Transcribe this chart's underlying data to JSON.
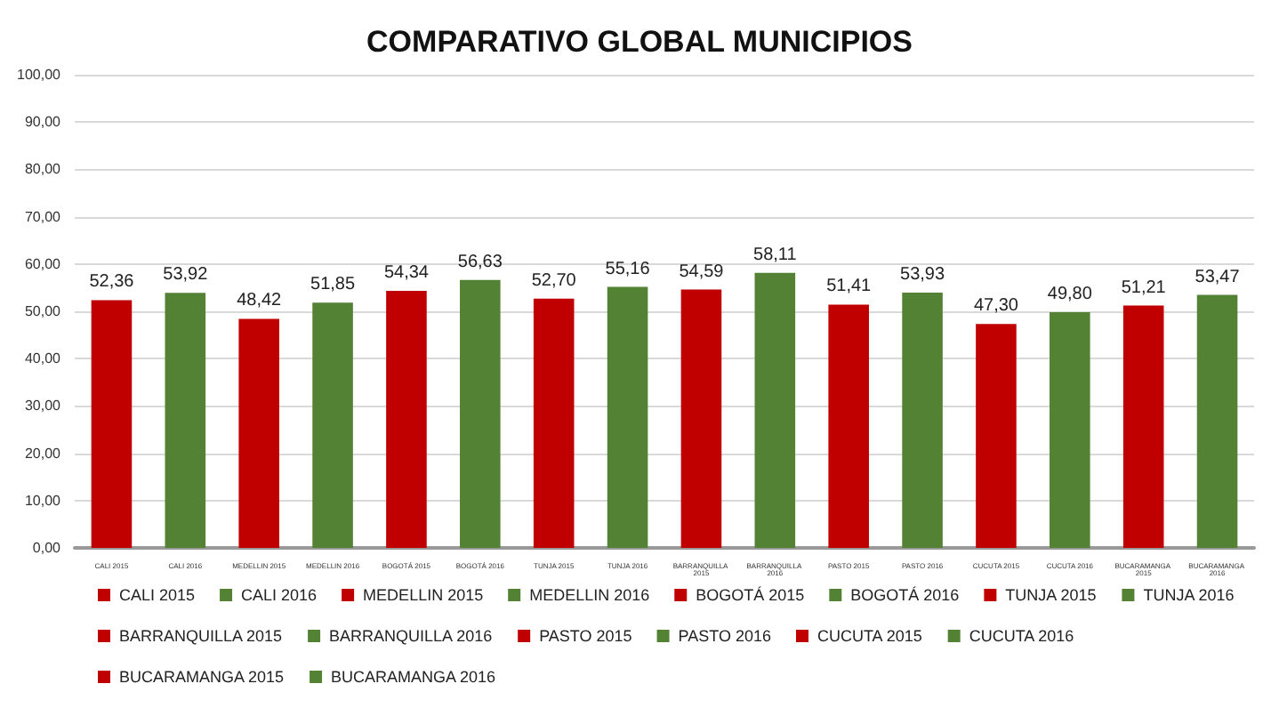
{
  "chart_data": {
    "type": "bar",
    "title": "COMPARATIVO GLOBAL MUNICIPIOS",
    "categories": [
      "CALI 2015",
      "CALI 2016",
      "MEDELLIN 2015",
      "MEDELLIN 2016",
      "BOGOTÁ 2015",
      "BOGOTÁ 2016",
      "TUNJA 2015",
      "TUNJA 2016",
      "BARRANQUILLA 2015",
      "BARRANQUILLA 2016",
      "PASTO 2015",
      "PASTO 2016",
      "CUCUTA 2015",
      "CUCUTA 2016",
      "BUCARAMANGA 2015",
      "BUCARAMANGA 2016"
    ],
    "series": [
      {
        "name": "CALI 2015",
        "color": "#c00000",
        "values": [
          52.36,
          null,
          null,
          null,
          null,
          null,
          null,
          null,
          null,
          null,
          null,
          null,
          null,
          null,
          null,
          null
        ],
        "value_labels": [
          "52,36",
          null,
          null,
          null,
          null,
          null,
          null,
          null,
          null,
          null,
          null,
          null,
          null,
          null,
          null,
          null
        ]
      },
      {
        "name": "CALI 2016",
        "color": "#548235",
        "values": [
          null,
          53.92,
          null,
          null,
          null,
          null,
          null,
          null,
          null,
          null,
          null,
          null,
          null,
          null,
          null,
          null
        ],
        "value_labels": [
          null,
          "53,92",
          null,
          null,
          null,
          null,
          null,
          null,
          null,
          null,
          null,
          null,
          null,
          null,
          null,
          null
        ]
      },
      {
        "name": "MEDELLIN 2015",
        "color": "#c00000",
        "values": [
          null,
          null,
          48.42,
          null,
          null,
          null,
          null,
          null,
          null,
          null,
          null,
          null,
          null,
          null,
          null,
          null
        ],
        "value_labels": [
          null,
          null,
          "48,42",
          null,
          null,
          null,
          null,
          null,
          null,
          null,
          null,
          null,
          null,
          null,
          null,
          null
        ]
      },
      {
        "name": "MEDELLIN 2016",
        "color": "#548235",
        "values": [
          null,
          null,
          null,
          51.85,
          null,
          null,
          null,
          null,
          null,
          null,
          null,
          null,
          null,
          null,
          null,
          null
        ],
        "value_labels": [
          null,
          null,
          null,
          "51,85",
          null,
          null,
          null,
          null,
          null,
          null,
          null,
          null,
          null,
          null,
          null,
          null
        ]
      },
      {
        "name": "BOGOTÁ 2015",
        "color": "#c00000",
        "values": [
          null,
          null,
          null,
          null,
          54.34,
          null,
          null,
          null,
          null,
          null,
          null,
          null,
          null,
          null,
          null,
          null
        ],
        "value_labels": [
          null,
          null,
          null,
          null,
          "54,34",
          null,
          null,
          null,
          null,
          null,
          null,
          null,
          null,
          null,
          null,
          null
        ]
      },
      {
        "name": "BOGOTÁ 2016",
        "color": "#548235",
        "values": [
          null,
          null,
          null,
          null,
          null,
          56.63,
          null,
          null,
          null,
          null,
          null,
          null,
          null,
          null,
          null,
          null
        ],
        "value_labels": [
          null,
          null,
          null,
          null,
          null,
          "56,63",
          null,
          null,
          null,
          null,
          null,
          null,
          null,
          null,
          null,
          null
        ]
      },
      {
        "name": "TUNJA 2015",
        "color": "#c00000",
        "values": [
          null,
          null,
          null,
          null,
          null,
          null,
          52.7,
          null,
          null,
          null,
          null,
          null,
          null,
          null,
          null,
          null
        ],
        "value_labels": [
          null,
          null,
          null,
          null,
          null,
          null,
          "52,70",
          null,
          null,
          null,
          null,
          null,
          null,
          null,
          null,
          null
        ]
      },
      {
        "name": "TUNJA 2016",
        "color": "#548235",
        "values": [
          null,
          null,
          null,
          null,
          null,
          null,
          null,
          55.16,
          null,
          null,
          null,
          null,
          null,
          null,
          null,
          null
        ],
        "value_labels": [
          null,
          null,
          null,
          null,
          null,
          null,
          null,
          "55,16",
          null,
          null,
          null,
          null,
          null,
          null,
          null,
          null
        ]
      },
      {
        "name": "BARRANQUILLA 2015",
        "color": "#c00000",
        "values": [
          null,
          null,
          null,
          null,
          null,
          null,
          null,
          null,
          54.59,
          null,
          null,
          null,
          null,
          null,
          null,
          null
        ],
        "value_labels": [
          null,
          null,
          null,
          null,
          null,
          null,
          null,
          null,
          "54,59",
          null,
          null,
          null,
          null,
          null,
          null,
          null
        ]
      },
      {
        "name": "BARRANQUILLA 2016",
        "color": "#548235",
        "values": [
          null,
          null,
          null,
          null,
          null,
          null,
          null,
          null,
          null,
          58.11,
          null,
          null,
          null,
          null,
          null,
          null
        ],
        "value_labels": [
          null,
          null,
          null,
          null,
          null,
          null,
          null,
          null,
          null,
          "58,11",
          null,
          null,
          null,
          null,
          null,
          null
        ]
      },
      {
        "name": "PASTO 2015",
        "color": "#c00000",
        "values": [
          null,
          null,
          null,
          null,
          null,
          null,
          null,
          null,
          null,
          null,
          51.41,
          null,
          null,
          null,
          null,
          null
        ],
        "value_labels": [
          null,
          null,
          null,
          null,
          null,
          null,
          null,
          null,
          null,
          null,
          "51,41",
          null,
          null,
          null,
          null,
          null
        ]
      },
      {
        "name": "PASTO 2016",
        "color": "#548235",
        "values": [
          null,
          null,
          null,
          null,
          null,
          null,
          null,
          null,
          null,
          null,
          null,
          53.93,
          null,
          null,
          null,
          null
        ],
        "value_labels": [
          null,
          null,
          null,
          null,
          null,
          null,
          null,
          null,
          null,
          null,
          null,
          "53,93",
          null,
          null,
          null,
          null
        ]
      },
      {
        "name": "CUCUTA 2015",
        "color": "#c00000",
        "values": [
          null,
          null,
          null,
          null,
          null,
          null,
          null,
          null,
          null,
          null,
          null,
          null,
          47.3,
          null,
          null,
          null
        ],
        "value_labels": [
          null,
          null,
          null,
          null,
          null,
          null,
          null,
          null,
          null,
          null,
          null,
          null,
          "47,30",
          null,
          null,
          null
        ]
      },
      {
        "name": "CUCUTA 2016",
        "color": "#548235",
        "values": [
          null,
          null,
          null,
          null,
          null,
          null,
          null,
          null,
          null,
          null,
          null,
          null,
          null,
          49.8,
          null,
          null
        ],
        "value_labels": [
          null,
          null,
          null,
          null,
          null,
          null,
          null,
          null,
          null,
          null,
          null,
          null,
          null,
          "49,80",
          null,
          null
        ]
      },
      {
        "name": "BUCARAMANGA 2015",
        "color": "#c00000",
        "values": [
          null,
          null,
          null,
          null,
          null,
          null,
          null,
          null,
          null,
          null,
          null,
          null,
          null,
          null,
          51.21,
          null
        ],
        "value_labels": [
          null,
          null,
          null,
          null,
          null,
          null,
          null,
          null,
          null,
          null,
          null,
          null,
          null,
          null,
          "51,21",
          null
        ]
      },
      {
        "name": "BUCARAMANGA 2016",
        "color": "#548235",
        "values": [
          null,
          null,
          null,
          null,
          null,
          null,
          null,
          null,
          null,
          null,
          null,
          null,
          null,
          null,
          null,
          53.47
        ],
        "value_labels": [
          null,
          null,
          null,
          null,
          null,
          null,
          null,
          null,
          null,
          null,
          null,
          null,
          null,
          null,
          null,
          "53,47"
        ]
      }
    ],
    "ylim": [
      0,
      100
    ],
    "yticks": [
      {
        "value": 0,
        "label": "0,00"
      },
      {
        "value": 10,
        "label": "10,00"
      },
      {
        "value": 20,
        "label": "20,00"
      },
      {
        "value": 30,
        "label": "30,00"
      },
      {
        "value": 40,
        "label": "40,00"
      },
      {
        "value": 50,
        "label": "50,00"
      },
      {
        "value": 60,
        "label": "60,00"
      },
      {
        "value": 70,
        "label": "70,00"
      },
      {
        "value": 80,
        "label": "80,00"
      },
      {
        "value": 90,
        "label": "90,00"
      },
      {
        "value": 100,
        "label": "100,00"
      }
    ],
    "grid": true,
    "legend": "bottom"
  }
}
